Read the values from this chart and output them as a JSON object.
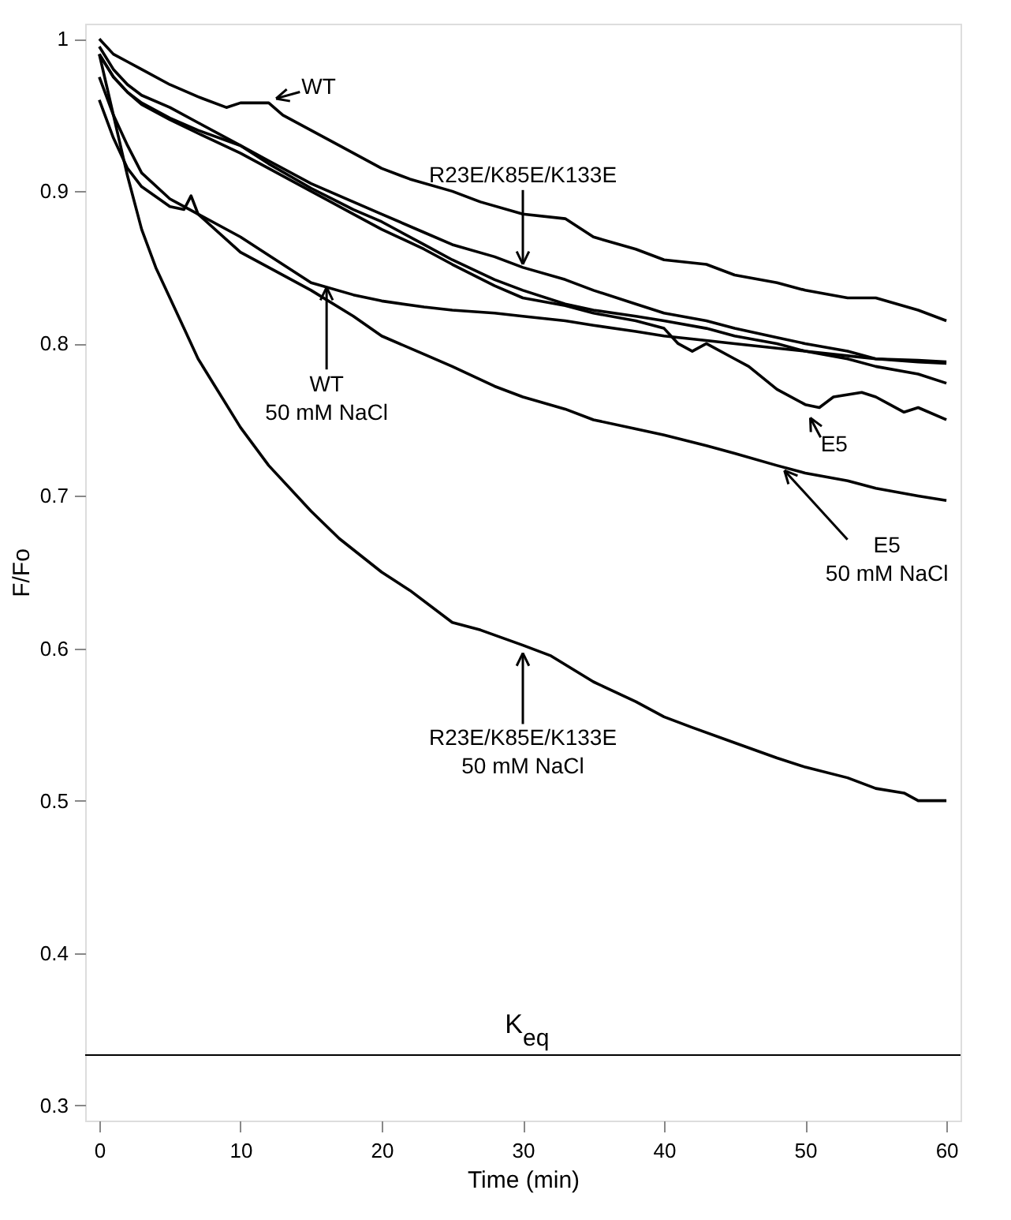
{
  "chart_data": {
    "type": "line",
    "xlabel": "Time (min)",
    "ylabel": "F/Fo",
    "xlim": [
      -1,
      61
    ],
    "ylim": [
      0.29,
      1.01
    ],
    "xticks": [
      0,
      10,
      20,
      30,
      40,
      50,
      60
    ],
    "yticks": [
      0.3,
      0.4,
      0.5,
      0.6,
      0.7,
      0.8,
      0.9,
      1
    ],
    "grid": false,
    "line_style": "solid",
    "series": [
      {
        "color": "#000000",
        "x": [
          0,
          1,
          2,
          3,
          5,
          7,
          9,
          10,
          12,
          13,
          15,
          17,
          20,
          22,
          25,
          27,
          30,
          33,
          35,
          38,
          40,
          43,
          45,
          48,
          50,
          53,
          55,
          58,
          60
        ],
        "values": [
          1.0,
          0.99,
          0.985,
          0.98,
          0.97,
          0.962,
          0.955,
          0.958,
          0.958,
          0.95,
          0.94,
          0.93,
          0.915,
          0.908,
          0.9,
          0.893,
          0.885,
          0.882,
          0.87,
          0.862,
          0.855,
          0.852,
          0.845,
          0.84,
          0.835,
          0.83,
          0.83,
          0.822,
          0.815
        ]
      },
      {
        "color": "#000000",
        "x": [
          0,
          1,
          2,
          3,
          5,
          7,
          10,
          12,
          15,
          18,
          20,
          23,
          25,
          28,
          30,
          33,
          35,
          38,
          40,
          43,
          45,
          48,
          50,
          53,
          55,
          58,
          60
        ],
        "values": [
          0.995,
          0.98,
          0.97,
          0.963,
          0.955,
          0.945,
          0.93,
          0.92,
          0.905,
          0.893,
          0.885,
          0.873,
          0.865,
          0.857,
          0.85,
          0.842,
          0.835,
          0.826,
          0.82,
          0.815,
          0.81,
          0.804,
          0.8,
          0.795,
          0.79,
          0.789,
          0.788
        ]
      },
      {
        "color": "#000000",
        "x": [
          0,
          1,
          2,
          3,
          5,
          7,
          10,
          12,
          15,
          18,
          20,
          23,
          25,
          28,
          30,
          33,
          35,
          38,
          40,
          43,
          45,
          48,
          50,
          53,
          55,
          58,
          60
        ],
        "values": [
          0.99,
          0.975,
          0.965,
          0.958,
          0.948,
          0.94,
          0.93,
          0.918,
          0.902,
          0.888,
          0.88,
          0.865,
          0.855,
          0.842,
          0.835,
          0.826,
          0.822,
          0.818,
          0.815,
          0.81,
          0.805,
          0.8,
          0.795,
          0.79,
          0.785,
          0.78,
          0.774
        ]
      },
      {
        "color": "#000000",
        "x": [
          0,
          1,
          2,
          3,
          5,
          7,
          10,
          12,
          15,
          18,
          20,
          23,
          25,
          28,
          30,
          33,
          35,
          38,
          40,
          41,
          42,
          43,
          45,
          46,
          48,
          50,
          51,
          52,
          54,
          55,
          57,
          58,
          60
        ],
        "values": [
          0.99,
          0.975,
          0.965,
          0.957,
          0.947,
          0.938,
          0.925,
          0.915,
          0.9,
          0.885,
          0.875,
          0.862,
          0.852,
          0.838,
          0.83,
          0.825,
          0.82,
          0.815,
          0.81,
          0.8,
          0.795,
          0.8,
          0.79,
          0.785,
          0.77,
          0.76,
          0.758,
          0.765,
          0.768,
          0.765,
          0.755,
          0.758,
          0.75
        ]
      },
      {
        "color": "#000000",
        "x": [
          0,
          1,
          2,
          3,
          5,
          7,
          10,
          12,
          15,
          18,
          20,
          23,
          25,
          28,
          30,
          33,
          35,
          38,
          40,
          43,
          45,
          48,
          50,
          53,
          55,
          58,
          60
        ],
        "values": [
          0.975,
          0.95,
          0.93,
          0.912,
          0.895,
          0.885,
          0.87,
          0.858,
          0.84,
          0.832,
          0.828,
          0.824,
          0.822,
          0.82,
          0.818,
          0.815,
          0.812,
          0.808,
          0.805,
          0.802,
          0.8,
          0.797,
          0.795,
          0.792,
          0.79,
          0.788,
          0.787
        ]
      },
      {
        "color": "#000000",
        "x": [
          0,
          1,
          2,
          3,
          5,
          6,
          6.5,
          7,
          10,
          12,
          15,
          18,
          20,
          23,
          25,
          28,
          30,
          33,
          35,
          38,
          40,
          43,
          45,
          48,
          50,
          53,
          55,
          58,
          60
        ],
        "values": [
          0.96,
          0.935,
          0.915,
          0.903,
          0.89,
          0.888,
          0.897,
          0.885,
          0.86,
          0.85,
          0.835,
          0.818,
          0.805,
          0.793,
          0.785,
          0.772,
          0.765,
          0.757,
          0.75,
          0.744,
          0.74,
          0.733,
          0.728,
          0.72,
          0.715,
          0.71,
          0.705,
          0.7,
          0.697
        ]
      },
      {
        "color": "#000000",
        "x": [
          0,
          0.5,
          1,
          1.5,
          2,
          3,
          4,
          5,
          6,
          7,
          8,
          10,
          12,
          15,
          17,
          20,
          22,
          25,
          27,
          30,
          32,
          35,
          38,
          40,
          42,
          45,
          48,
          50,
          53,
          55,
          57,
          58,
          60
        ],
        "values": [
          0.99,
          0.97,
          0.95,
          0.93,
          0.91,
          0.875,
          0.85,
          0.83,
          0.81,
          0.79,
          0.775,
          0.745,
          0.72,
          0.69,
          0.672,
          0.65,
          0.638,
          0.617,
          0.612,
          0.602,
          0.595,
          0.578,
          0.565,
          0.555,
          0.548,
          0.538,
          0.528,
          0.522,
          0.515,
          0.508,
          0.505,
          0.5,
          0.5
        ]
      }
    ],
    "ref_lines": [
      {
        "axis": "y",
        "value": 0.333,
        "label": "K$_{eq}$"
      }
    ],
    "annotations": [
      {
        "text": "WT",
        "x": 12.2,
        "y": 0.96
      },
      {
        "text": "R23E/K85E/K133E",
        "x": 30,
        "y": 0.849
      },
      {
        "text": "WT\n50 mM NaCl",
        "x": 16.1,
        "y": 0.84
      },
      {
        "text": "E5",
        "x": 50.2,
        "y": 0.754
      },
      {
        "text": "E5\n50 mM NaCl",
        "x": 48.3,
        "y": 0.719
      },
      {
        "text": "R23E/K85E/K133E\n50 mM NaCl",
        "x": 30,
        "y": 0.6
      }
    ]
  }
}
